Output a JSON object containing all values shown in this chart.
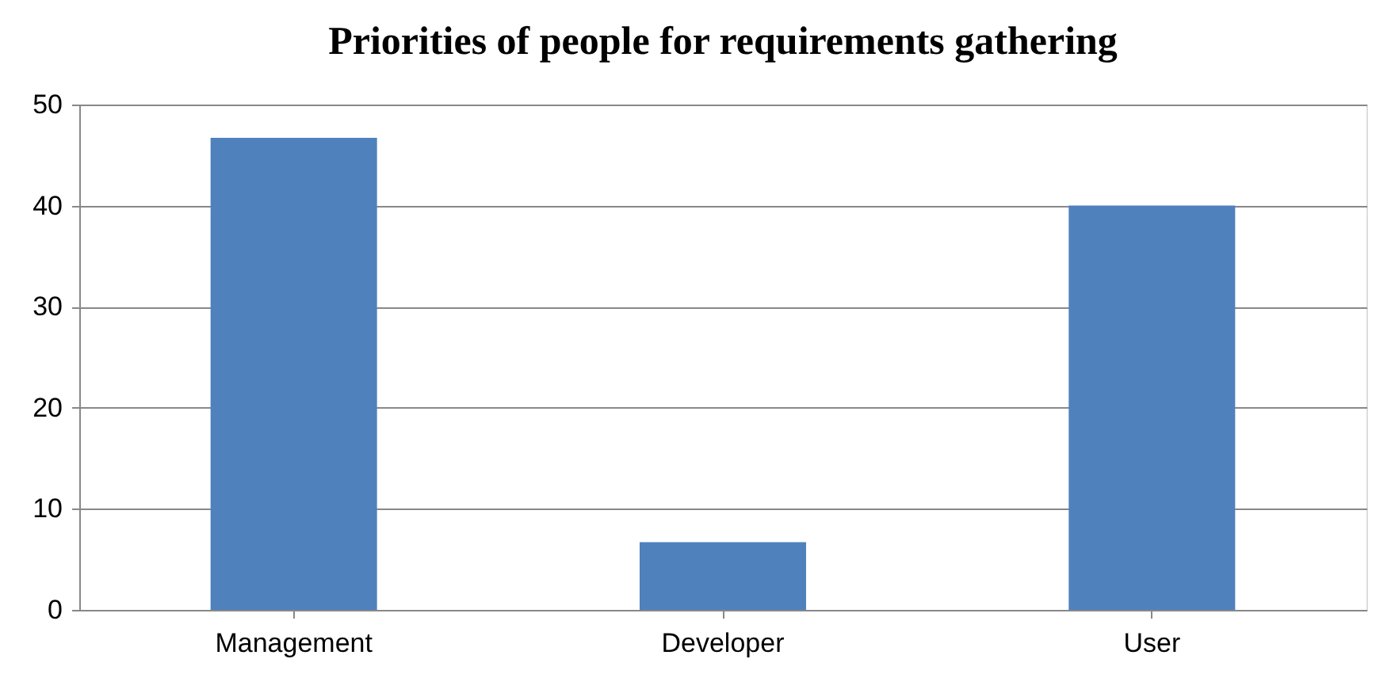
{
  "chart_data": {
    "type": "bar",
    "title": "Priorities of people for requirements gathering",
    "categories": [
      "Management",
      "Developer",
      "User"
    ],
    "values": [
      46.7,
      6.7,
      40
    ],
    "color": "#4f81bd",
    "ylim": [
      0,
      50
    ],
    "yticks": [
      0,
      10,
      20,
      30,
      40,
      50
    ],
    "grid": "y"
  }
}
